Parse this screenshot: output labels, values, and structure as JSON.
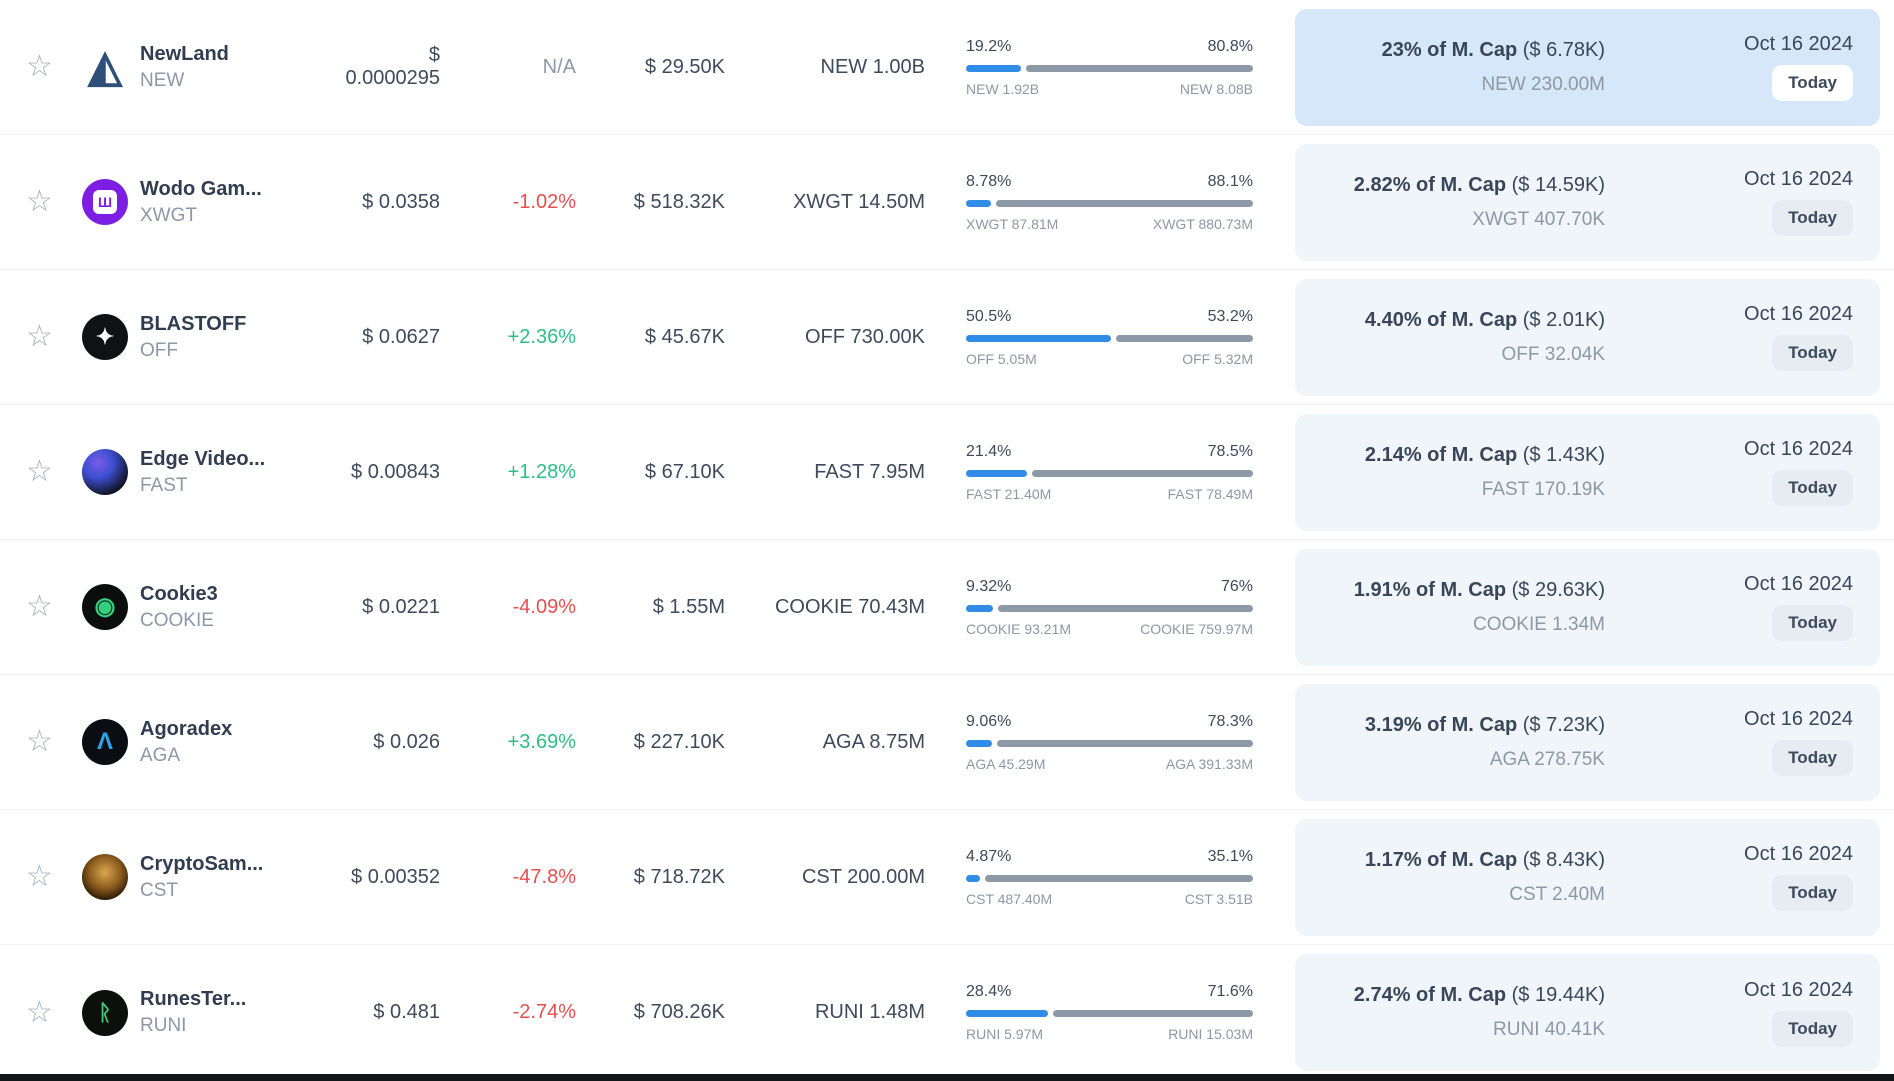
{
  "colors": {
    "bar_fill_blue": "#318ce8",
    "bar_rest_gray": "#8d99a7",
    "highlight_cell_blue": "#d5e7f8",
    "cell_gray": "#f0f5f9",
    "positive_green": "#2ebd85",
    "negative_red": "#e4504e",
    "muted_text": "#8d97a6",
    "dark_text": "#39465a"
  },
  "rows": [
    {
      "name": "NewLand",
      "symbol": "NEW",
      "price": "$ 0.0000295",
      "change": "N/A",
      "change_dir": "neutral",
      "volume": "$ 29.50K",
      "supply": "NEW 1.00B",
      "bar": {
        "left_pct": "19.2%",
        "right_pct": "80.8%",
        "left_label": "NEW 1.92B",
        "right_label": "NEW 8.08B",
        "fill_pct": 19.2
      },
      "mcap": {
        "headline": "23% of M. Cap",
        "paren": "($ 6.78K)",
        "amount": "NEW 230.00M"
      },
      "date": "Oct 16 2024",
      "badge": "Today",
      "highlighted": true,
      "logo": {
        "icon": "pyramid-icon",
        "glyph": "◭",
        "bg": "transparent",
        "color": "#2e4f78",
        "size": 44,
        "flat": true
      }
    },
    {
      "name": "Wodo Gam...",
      "symbol": "XWGT",
      "price": "$ 0.0358",
      "change": "-1.02%",
      "change_dir": "down",
      "volume": "$ 518.32K",
      "supply": "XWGT 14.50M",
      "bar": {
        "left_pct": "8.78%",
        "right_pct": "88.1%",
        "left_label": "XWGT 87.81M",
        "right_label": "XWGT 880.73M",
        "fill_pct": 8.78
      },
      "mcap": {
        "headline": "2.82% of M. Cap",
        "paren": "($ 14.59K)",
        "amount": "XWGT 407.70K"
      },
      "date": "Oct 16 2024",
      "badge": "Today",
      "highlighted": false,
      "logo": {
        "icon": "wodo-gaming-icon",
        "glyph": "Ш",
        "bg": "#7c1fe3",
        "color": "#7c1fe3",
        "size": 14,
        "boxed": true
      }
    },
    {
      "name": "BLASTOFF",
      "symbol": "OFF",
      "price": "$ 0.0627",
      "change": "+2.36%",
      "change_dir": "up",
      "volume": "$ 45.67K",
      "supply": "OFF 730.00K",
      "bar": {
        "left_pct": "50.5%",
        "right_pct": "53.2%",
        "left_label": "OFF 5.05M",
        "right_label": "OFF 5.32M",
        "fill_pct": 50.5
      },
      "mcap": {
        "headline": "4.40% of M. Cap",
        "paren": "($ 2.01K)",
        "amount": "OFF 32.04K"
      },
      "date": "Oct 16 2024",
      "badge": "Today",
      "highlighted": false,
      "logo": {
        "icon": "blastoff-rocket-icon",
        "glyph": "✦",
        "bg": "#101114",
        "color": "#ffffff",
        "size": 22
      }
    },
    {
      "name": "Edge Video...",
      "symbol": "FAST",
      "price": "$ 0.00843",
      "change": "+1.28%",
      "change_dir": "up",
      "volume": "$ 67.10K",
      "supply": "FAST 7.95M",
      "bar": {
        "left_pct": "21.4%",
        "right_pct": "78.5%",
        "left_label": "FAST 21.40M",
        "right_label": "FAST 78.49M",
        "fill_pct": 21.4
      },
      "mcap": {
        "headline": "2.14% of M. Cap",
        "paren": "($ 1.43K)",
        "amount": "FAST 170.19K"
      },
      "date": "Oct 16 2024",
      "badge": "Today",
      "highlighted": false,
      "logo": {
        "icon": "edge-video-sphere-icon",
        "glyph": "",
        "bg": "radial-gradient(circle at 35% 30%, #7a5be8 0%, #3b4fd0 35%, #101322 75%)",
        "color": "#ffffff",
        "size": 20
      }
    },
    {
      "name": "Cookie3",
      "symbol": "COOKIE",
      "price": "$ 0.0221",
      "change": "-4.09%",
      "change_dir": "down",
      "volume": "$ 1.55M",
      "supply": "COOKIE 70.43M",
      "bar": {
        "left_pct": "9.32%",
        "right_pct": "76%",
        "left_label": "COOKIE 93.21M",
        "right_label": "COOKIE 759.97M",
        "fill_pct": 9.32
      },
      "mcap": {
        "headline": "1.91% of M. Cap",
        "paren": "($ 29.63K)",
        "amount": "COOKIE 1.34M"
      },
      "date": "Oct 16 2024",
      "badge": "Today",
      "highlighted": false,
      "logo": {
        "icon": "cookie-icon",
        "glyph": "◉",
        "bg": "#0b0e0c",
        "color": "#35d07f",
        "size": 24
      }
    },
    {
      "name": "Agoradex",
      "symbol": "AGA",
      "price": "$ 0.026",
      "change": "+3.69%",
      "change_dir": "up",
      "volume": "$ 227.10K",
      "supply": "AGA 8.75M",
      "bar": {
        "left_pct": "9.06%",
        "right_pct": "78.3%",
        "left_label": "AGA 45.29M",
        "right_label": "AGA 391.33M",
        "fill_pct": 9.06
      },
      "mcap": {
        "headline": "3.19% of M. Cap",
        "paren": "($ 7.23K)",
        "amount": "AGA 278.75K"
      },
      "date": "Oct 16 2024",
      "badge": "Today",
      "highlighted": false,
      "logo": {
        "icon": "agoradex-lambda-icon",
        "glyph": "Λ",
        "bg": "#0a0e13",
        "color": "#29a4e6",
        "size": 24
      }
    },
    {
      "name": "CryptoSam...",
      "symbol": "CST",
      "price": "$ 0.00352",
      "change": "-47.8%",
      "change_dir": "down",
      "volume": "$ 718.72K",
      "supply": "CST 200.00M",
      "bar": {
        "left_pct": "4.87%",
        "right_pct": "35.1%",
        "left_label": "CST 487.40M",
        "right_label": "CST 3.51B",
        "fill_pct": 4.87
      },
      "mcap": {
        "headline": "1.17% of M. Cap",
        "paren": "($ 8.43K)",
        "amount": "CST 2.40M"
      },
      "date": "Oct 16 2024",
      "badge": "Today",
      "highlighted": false,
      "logo": {
        "icon": "crypto-samurai-icon",
        "glyph": "",
        "bg": "radial-gradient(circle at 50% 40%, #d8a94e 0%, #8a5a1d 45%, #241403 80%)",
        "color": "#f0c05f",
        "size": 20
      }
    },
    {
      "name": "RunesTer...",
      "symbol": "RUNI",
      "price": "$ 0.481",
      "change": "-2.74%",
      "change_dir": "down",
      "volume": "$ 708.26K",
      "supply": "RUNI 1.48M",
      "bar": {
        "left_pct": "28.4%",
        "right_pct": "71.6%",
        "left_label": "RUNI 5.97M",
        "right_label": "RUNI 15.03M",
        "fill_pct": 28.4
      },
      "mcap": {
        "headline": "2.74% of M. Cap",
        "paren": "($ 19.44K)",
        "amount": "RUNI 40.41K"
      },
      "date": "Oct 16 2024",
      "badge": "Today",
      "highlighted": false,
      "logo": {
        "icon": "runes-terminal-icon",
        "glyph": "ᚱ",
        "bg": "#0c100d",
        "color": "#44cc77",
        "size": 22
      }
    }
  ]
}
